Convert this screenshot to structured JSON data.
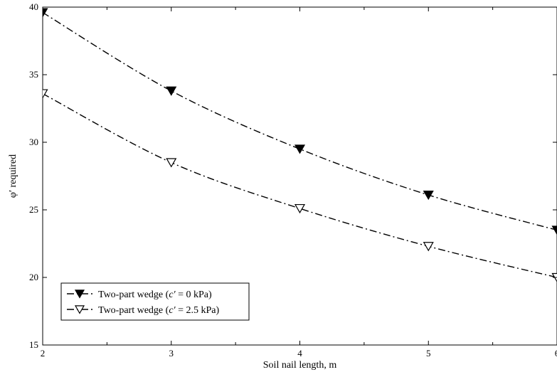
{
  "chart_data": {
    "type": "line",
    "xlabel": "Soil nail length, m",
    "ylabel": "φ′ required",
    "xlim": [
      2,
      6
    ],
    "ylim": [
      15,
      40
    ],
    "x_ticks": [
      "2",
      "3",
      "4",
      "5",
      "6"
    ],
    "y_ticks": [
      "15",
      "20",
      "25",
      "30",
      "35",
      "40"
    ],
    "grid": false,
    "legend_position": "lower-left",
    "x": [
      2,
      3,
      4,
      5,
      6
    ],
    "series": [
      {
        "name": "Two-part wedge (c′ = 0 kPa)",
        "legend_parts": [
          "Two-part wedge (",
          "c′",
          " = 0 kPa)"
        ],
        "marker": "filled-down-triangle",
        "values": [
          39.6,
          33.8,
          29.5,
          26.1,
          23.5
        ]
      },
      {
        "name": "Two-part wedge (c′ = 2.5 kPa)",
        "legend_parts": [
          "Two-part wedge (",
          "c′",
          " = 2.5 kPa)"
        ],
        "marker": "open-down-triangle",
        "values": [
          33.6,
          28.5,
          25.1,
          22.3,
          20.0
        ]
      }
    ]
  }
}
